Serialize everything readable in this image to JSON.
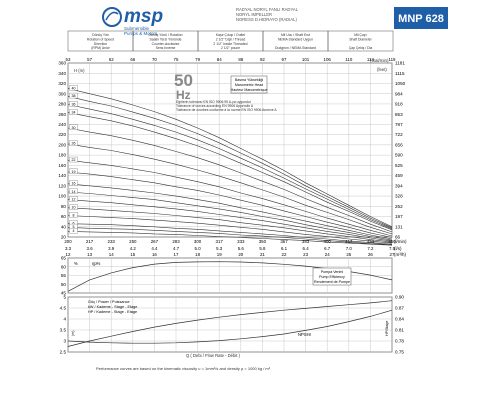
{
  "header": {
    "logo_text": "msp",
    "logo_tagline_1": "Submersible",
    "logo_tagline_2": "Pumps & Motors",
    "title_lines": [
      "RADYAL NORYL FANLI RADYAL",
      "NORYL IMPELLER",
      "NORESS D.HIDRAYO (RADIAL)"
    ],
    "model": "MNP 628",
    "spec_cells": [
      {
        "lines": [
          "Dönüş Yön",
          "Rotation of Speed",
          "Direction",
          "(RPM) Anlor"
        ]
      },
      {
        "lines": [
          "Dönüş Yönü / Rotation",
          "Saatin Tersi Yönünde",
          "Counter-clockwise",
          "Sens Inverse"
        ]
      },
      {
        "lines": [
          "Kaşe Çıkışı / Outlet",
          "2 1/2\" Dişli / Thread",
          "2 1/2\" Inside Threaded",
          "2 1/2\" pouce"
        ]
      },
      {
        "lines": [
          "Mil Ucu / Shaft End",
          "NEMA Standard Uygun",
          "",
          "Dudgeon / NEMA Standard"
        ]
      },
      {
        "lines": [
          "Mil Çapı",
          "Shaft Diameter",
          "",
          "Çap Çekiş / Dia"
        ]
      }
    ]
  },
  "chart_data": [
    {
      "type": "line",
      "title": "",
      "hz_label": "50",
      "hz_unit": "Hz",
      "xlabel": "(l/min)",
      "ylabel": "H (m)",
      "unit_gpm": "(Gal/min)",
      "unit_ft": "(feet)",
      "x_gpm_ticks": [
        53,
        57,
        62,
        66,
        70,
        75,
        79,
        84,
        88,
        92,
        97,
        101,
        106,
        110,
        114,
        119
      ],
      "x_lmin_ticks": [
        200,
        217,
        233,
        250,
        267,
        283,
        300,
        317,
        333,
        350,
        367,
        383,
        400,
        417,
        433,
        450
      ],
      "x_m3h_ticks": [
        12,
        13,
        14,
        15,
        16,
        17,
        18,
        19,
        20,
        21,
        22,
        23,
        24,
        25,
        26,
        27
      ],
      "x_ls_ticks": [
        3.3,
        3.6,
        3.9,
        4.2,
        4.4,
        4.7,
        5.0,
        5.3,
        5.6,
        5.8,
        6.1,
        6.4,
        6.7,
        7.0,
        7.2,
        7.5
      ],
      "unit_ls": "(l/s)",
      "unit_m3h": "(m³/h)",
      "ylim": [
        20,
        360
      ],
      "y_ticks": [
        20,
        40,
        60,
        80,
        100,
        120,
        140,
        160,
        180,
        200,
        220,
        240,
        260,
        280,
        300,
        320,
        340,
        360
      ],
      "y_ft_ticks": [
        66,
        131,
        197,
        262,
        328,
        394,
        459,
        525,
        590,
        656,
        722,
        787,
        853,
        918,
        984,
        1050,
        1115,
        1181
      ],
      "legend_box_lines": [
        "Basma Yüksekliği",
        "Manometric Head",
        "Hauteur Manometrique"
      ],
      "tolerance_lines": [
        "Eğrilerin toleransı EN ISO 9906:99 A-ya uygundur",
        "Tolerance of curves according EN 9906 Appendix A",
        "Tolérance de courbes conforme à la norme EN ISO 9906 Annexe A"
      ],
      "curve_labels": [
        "40",
        "38",
        "36",
        "34",
        "30",
        "26",
        "22",
        "19",
        "16",
        "14",
        "12",
        "10",
        "8",
        "6",
        "5",
        "4"
      ],
      "series": [
        {
          "stages": "40",
          "values": [
            310,
            300,
            290,
            278,
            265,
            250,
            233,
            214,
            193,
            172,
            150,
            126,
            104,
            82,
            60,
            40
          ]
        },
        {
          "stages": "38",
          "values": [
            295,
            285,
            276,
            264,
            252,
            238,
            222,
            204,
            184,
            164,
            143,
            120,
            99,
            78,
            57,
            38
          ]
        },
        {
          "stages": "36",
          "values": [
            279,
            270,
            261,
            250,
            238,
            225,
            210,
            193,
            174,
            155,
            135,
            114,
            94,
            74,
            54,
            36
          ]
        },
        {
          "stages": "34",
          "values": [
            263,
            255,
            247,
            237,
            225,
            212,
            198,
            182,
            164,
            146,
            128,
            108,
            88,
            70,
            51,
            34
          ]
        },
        {
          "stages": "30",
          "values": [
            233,
            225,
            218,
            209,
            199,
            187,
            175,
            161,
            145,
            129,
            113,
            95,
            78,
            62,
            45,
            30
          ]
        },
        {
          "stages": "26",
          "values": [
            202,
            195,
            189,
            181,
            172,
            162,
            151,
            139,
            126,
            112,
            98,
            82,
            68,
            54,
            39,
            26
          ]
        },
        {
          "stages": "22",
          "values": [
            170,
            165,
            160,
            153,
            146,
            137,
            128,
            118,
            106,
            95,
            83,
            70,
            57,
            45,
            33,
            22
          ]
        },
        {
          "stages": "19",
          "values": [
            147,
            143,
            138,
            132,
            126,
            118,
            111,
            102,
            92,
            82,
            71,
            60,
            49,
            39,
            28,
            19
          ]
        },
        {
          "stages": "16",
          "values": [
            124,
            120,
            116,
            111,
            106,
            100,
            93,
            86,
            77,
            69,
            60,
            51,
            42,
            33,
            24,
            16
          ]
        },
        {
          "stages": "14",
          "values": [
            108,
            105,
            101,
            97,
            93,
            87,
            81,
            75,
            68,
            60,
            53,
            44,
            36,
            29,
            21,
            14
          ]
        },
        {
          "stages": "12",
          "values": [
            93,
            90,
            87,
            83,
            79,
            75,
            70,
            64,
            58,
            52,
            45,
            38,
            31,
            25,
            18,
            12
          ]
        },
        {
          "stages": "10",
          "values": [
            77,
            75,
            72,
            69,
            66,
            62,
            58,
            54,
            48,
            43,
            38,
            32,
            26,
            21,
            15,
            10
          ]
        },
        {
          "stages": "8",
          "values": [
            62,
            60,
            58,
            56,
            53,
            50,
            47,
            43,
            39,
            35,
            30,
            25,
            21,
            16,
            12,
            8
          ]
        },
        {
          "stages": "6",
          "values": [
            46,
            45,
            44,
            42,
            40,
            37,
            35,
            32,
            29,
            26,
            23,
            19,
            16,
            12,
            9,
            6
          ]
        },
        {
          "stages": "5",
          "values": [
            39,
            37,
            36,
            35,
            33,
            31,
            29,
            27,
            24,
            22,
            19,
            16,
            13,
            10,
            7,
            5
          ]
        },
        {
          "stages": "4",
          "values": [
            31,
            30,
            29,
            28,
            26,
            25,
            23,
            21,
            19,
            17,
            15,
            13,
            10,
            8,
            6,
            4
          ]
        }
      ]
    },
    {
      "type": "line",
      "ylabel": "%",
      "series_label": "ηp%",
      "ylim": [
        45,
        65
      ],
      "y_ticks": [
        45,
        50,
        55,
        60,
        65
      ],
      "legend_box_lines": [
        "Pompa Verimi",
        "Pump Efficiency",
        "Rendement de Pompe"
      ],
      "series": [
        {
          "name": "ηp%",
          "values": [
            46,
            52.5,
            56.5,
            59.5,
            61.5,
            62.5,
            62.8,
            62.9,
            62.7,
            62.2,
            61.4,
            60.4,
            59.0,
            57.3,
            55.2,
            52.5
          ]
        }
      ]
    },
    {
      "type": "line",
      "ylim": [
        2.5,
        5
      ],
      "y_ticks": [
        2.5,
        3,
        3.5,
        4,
        4.5,
        5
      ],
      "y_hp_ticks": [
        0.75,
        0.78,
        0.81,
        0.84,
        0.87,
        0.9
      ],
      "label_kw": "kW / Kademe - Stage - Etage",
      "label_hp": "HP / Kademe - Stage - Etage",
      "label_npsh": "NPSHr",
      "unit_npsh": "(m)",
      "unit_hp": "HP/Stage",
      "note_small": "Güç / Power / Puissance",
      "series": [
        {
          "name": "kW / Stage",
          "values": [
            0.765,
            0.78,
            0.793,
            0.806,
            0.818,
            0.828,
            0.837,
            0.845,
            0.852,
            0.858,
            0.864,
            0.869,
            0.874,
            0.879,
            0.884,
            0.89
          ]
        },
        {
          "name": "NPSHr",
          "values": [
            3.0,
            2.95,
            2.92,
            2.9,
            2.9,
            2.92,
            2.96,
            3.02,
            3.1,
            3.2,
            3.32,
            3.48,
            3.66,
            3.88,
            4.12,
            4.4
          ]
        }
      ],
      "bottom_xlabel": "Q    ( Debi / Flow Rate - Débit )"
    }
  ],
  "footer": {
    "note": "Performance curves are based on the kinematic viscosity υ = 1mm²/s and density ρ = 1000 kg / m³"
  }
}
